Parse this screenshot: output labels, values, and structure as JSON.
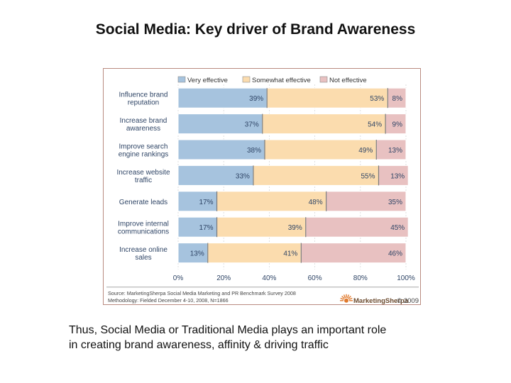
{
  "slide": {
    "title": "Social Media: Key driver of Brand Awareness",
    "body_lines": [
      "Thus, Social Media or Traditional Media plays an important role",
      "in creating brand awareness, affinity & driving traffic"
    ]
  },
  "chart_data": {
    "type": "bar",
    "orientation": "horizontal-stacked-100",
    "categories": [
      [
        "Influence brand",
        "reputation"
      ],
      [
        "Increase brand",
        "awareness"
      ],
      [
        "Improve search",
        "engine rankings"
      ],
      [
        "Increase website",
        "traffic"
      ],
      [
        "Generate leads"
      ],
      [
        "Improve internal",
        "communications"
      ],
      [
        "Increase online",
        "sales"
      ]
    ],
    "series": [
      {
        "name": "Very effective",
        "color": "#a6c3de",
        "values": [
          39,
          37,
          38,
          33,
          17,
          17,
          13
        ]
      },
      {
        "name": "Somewhat effective",
        "color": "#fbdcae",
        "values": [
          53,
          54,
          49,
          55,
          48,
          39,
          41
        ]
      },
      {
        "name": "Not effective",
        "color": "#e8c1c1",
        "values": [
          8,
          9,
          13,
          13,
          35,
          45,
          46
        ]
      }
    ],
    "xlim": [
      0,
      100
    ],
    "xticks": [
      "0%",
      "20%",
      "40%",
      "60%",
      "80%",
      "100%"
    ],
    "legend_position": "top",
    "source_lines": [
      "Source: MarketingSherpa Social Media Marketing and PR Benchmark Survey 2008",
      "Methodology: Fielded December 4-10, 2008, N=1866"
    ],
    "logo_text": "MarketingSherpa",
    "copyright": "© 2009"
  }
}
